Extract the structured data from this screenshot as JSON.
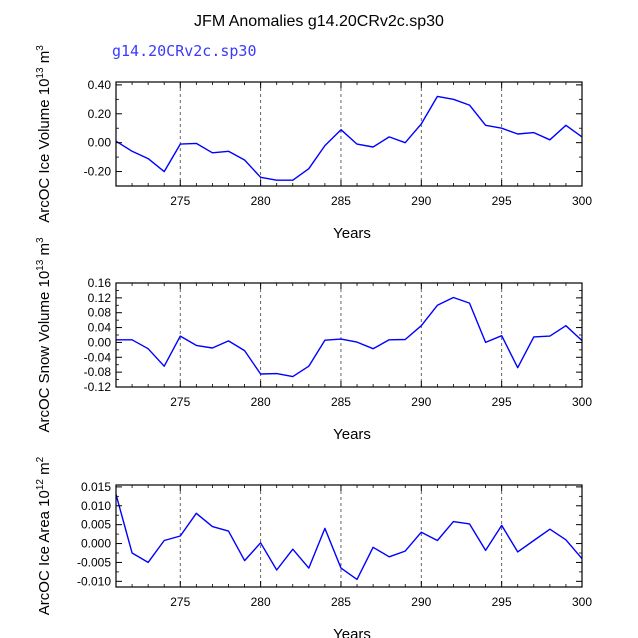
{
  "figure": {
    "title": "JFM Anomalies g14.20CRv2c.sp30",
    "subtitle": "g14.20CRv2c.sp30",
    "line_color": "#0000ff",
    "grid_color": "#555555"
  },
  "chart_data": [
    {
      "type": "line",
      "xlabel": "Years",
      "ylabel": {
        "pre": "ArcOC Ice Volume 10",
        "sup1": "13",
        "mid": " m",
        "sup2": "3"
      },
      "xlim": [
        271,
        300
      ],
      "ylim": [
        -0.3,
        0.42
      ],
      "xticks": [
        275,
        280,
        285,
        290,
        295,
        300
      ],
      "yticks": [
        -0.2,
        0.0,
        0.2,
        0.4
      ],
      "ytick_labels": [
        "-0.20",
        "0.00",
        "0.20",
        "0.40"
      ],
      "vgrid": [
        275,
        280,
        285,
        290,
        295
      ],
      "x": [
        271,
        272,
        273,
        274,
        275,
        276,
        277,
        278,
        279,
        280,
        281,
        282,
        283,
        284,
        285,
        286,
        287,
        288,
        289,
        290,
        291,
        292,
        293,
        294,
        295,
        296,
        297,
        298,
        299,
        300
      ],
      "series": [
        {
          "name": "g14.20CRv2c.sp30",
          "values": [
            0.01,
            -0.06,
            -0.11,
            -0.2,
            -0.01,
            -0.005,
            -0.07,
            -0.06,
            -0.12,
            -0.24,
            -0.26,
            -0.26,
            -0.18,
            -0.02,
            0.09,
            -0.01,
            -0.03,
            0.04,
            0.0,
            0.13,
            0.32,
            0.3,
            0.26,
            0.12,
            0.1,
            0.06,
            0.07,
            0.02,
            0.12,
            0.04
          ]
        }
      ]
    },
    {
      "type": "line",
      "xlabel": "Years",
      "ylabel": {
        "pre": "ArcOC Snow Volume 10",
        "sup1": "13",
        "mid": " m",
        "sup2": "3"
      },
      "xlim": [
        271,
        300
      ],
      "ylim": [
        -0.12,
        0.16
      ],
      "xticks": [
        275,
        280,
        285,
        290,
        295,
        300
      ],
      "yticks": [
        -0.12,
        -0.08,
        -0.04,
        0.0,
        0.04,
        0.08,
        0.12,
        0.16
      ],
      "ytick_labels": [
        "-0.12",
        "-0.08",
        "-0.04",
        "0.00",
        "0.04",
        "0.08",
        "0.12",
        "0.16"
      ],
      "vgrid": [
        275,
        280,
        285,
        290,
        295
      ],
      "x": [
        271,
        272,
        273,
        274,
        275,
        276,
        277,
        278,
        279,
        280,
        281,
        282,
        283,
        284,
        285,
        286,
        287,
        288,
        289,
        290,
        291,
        292,
        293,
        294,
        295,
        296,
        297,
        298,
        299,
        300
      ],
      "series": [
        {
          "name": "g14.20CRv2c.sp30",
          "values": [
            0.007,
            0.007,
            -0.017,
            -0.064,
            0.017,
            -0.008,
            -0.015,
            0.004,
            -0.022,
            -0.085,
            -0.084,
            -0.092,
            -0.064,
            0.006,
            0.009,
            0.001,
            -0.017,
            0.007,
            0.008,
            0.045,
            0.1,
            0.121,
            0.106,
            0.0,
            0.018,
            -0.068,
            0.015,
            0.017,
            0.045,
            0.005
          ]
        }
      ]
    },
    {
      "type": "line",
      "xlabel": "Years",
      "ylabel": {
        "pre": "ArcOC Ice Area 10",
        "sup1": "12",
        "mid": " m",
        "sup2": "2"
      },
      "xlim": [
        271,
        300
      ],
      "ylim": [
        -0.0115,
        0.0155
      ],
      "xticks": [
        275,
        280,
        285,
        290,
        295,
        300
      ],
      "yticks": [
        -0.01,
        -0.005,
        0.0,
        0.005,
        0.01,
        0.015
      ],
      "ytick_labels": [
        "-0.010",
        "-0.005",
        "0.000",
        "0.005",
        "0.010",
        "0.015"
      ],
      "vgrid": [
        275,
        280,
        285,
        290,
        295
      ],
      "x": [
        271,
        272,
        273,
        274,
        275,
        276,
        277,
        278,
        279,
        280,
        281,
        282,
        283,
        284,
        285,
        286,
        287,
        288,
        289,
        290,
        291,
        292,
        293,
        294,
        295,
        296,
        297,
        298,
        299,
        300
      ],
      "series": [
        {
          "name": "g14.20CRv2c.sp30",
          "values": [
            0.013,
            -0.0025,
            -0.005,
            0.0008,
            0.002,
            0.008,
            0.0045,
            0.0033,
            -0.0045,
            0.0002,
            -0.007,
            -0.0015,
            -0.0065,
            0.004,
            -0.0065,
            -0.0095,
            -0.001,
            -0.0035,
            -0.002,
            0.003,
            0.0008,
            0.0058,
            0.0052,
            -0.0018,
            0.0048,
            -0.0022,
            0.0008,
            0.0038,
            0.001,
            -0.004
          ]
        }
      ]
    }
  ]
}
